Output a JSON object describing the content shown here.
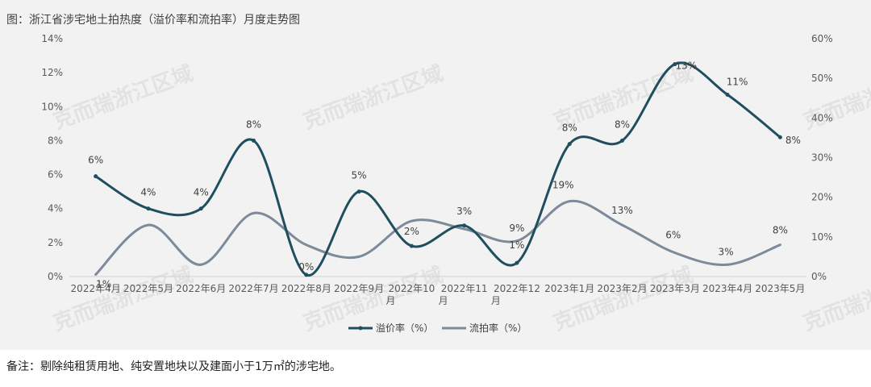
{
  "page": {
    "title": "图：浙江省涉宅地土拍热度（溢价率和流拍率）月度走势图",
    "note": "备注：剔除纯租赁用地、纯安置地块以及建面小于1万㎡的涉宅地。",
    "watermark": "克而瑞浙江区域"
  },
  "chart_data": {
    "type": "line",
    "title": "",
    "categories": [
      "2022年4月",
      "2022年5月",
      "2022年6月",
      "2022年7月",
      "2022年8月",
      "2022年9月",
      "2022年10月",
      "2022年11月",
      "2022年12月",
      "2023年1月",
      "2023年2月",
      "2023年3月",
      "2023年4月",
      "2023年5月"
    ],
    "category_lines": [
      [
        "2022年4月"
      ],
      [
        "2022年5月"
      ],
      [
        "2022年6月"
      ],
      [
        "2022年7月"
      ],
      [
        "2022年8月"
      ],
      [
        "2022年9月"
      ],
      [
        "2022年10",
        "月"
      ],
      [
        "2022年11",
        "月"
      ],
      [
        "2022年12",
        "月"
      ],
      [
        "2023年1月"
      ],
      [
        "2023年2月"
      ],
      [
        "2023年3月"
      ],
      [
        "2023年4月"
      ],
      [
        "2023年5月"
      ]
    ],
    "y_left": {
      "min": 0,
      "max": 14,
      "step": 2,
      "ticks": [
        "0%",
        "2%",
        "4%",
        "6%",
        "8%",
        "10%",
        "12%",
        "14%"
      ]
    },
    "y_right": {
      "min": 0,
      "max": 60,
      "step": 10,
      "ticks": [
        "0%",
        "10%",
        "20%",
        "30%",
        "40%",
        "50%",
        "60%"
      ]
    },
    "series": [
      {
        "name": "溢价率（%）",
        "axis": "left",
        "color": "#1f4e5f",
        "values": [
          5.9,
          4.0,
          4.0,
          8.0,
          0.1,
          5.0,
          1.8,
          3.0,
          0.8,
          7.8,
          8.0,
          12.5,
          10.7,
          8.2
        ],
        "labels": [
          "6%",
          "4%",
          "4%",
          "8%",
          "0%",
          "5%",
          "2%",
          "3%",
          "1%",
          "8%",
          "8%",
          "13%",
          "11%",
          "8%"
        ]
      },
      {
        "name": "流拍率（%）",
        "axis": "right",
        "color": "#7d8a99",
        "values": [
          0.5,
          13,
          3,
          16,
          8,
          5,
          14,
          12,
          9,
          19,
          13,
          6,
          3,
          8
        ],
        "labels": [
          "1%",
          "13%",
          "3%",
          "16%",
          "8%",
          "5%",
          "14%",
          "12%",
          "9%",
          "19%",
          "13%",
          "6%",
          "3%",
          "8%"
        ],
        "shown_labels": [
          true,
          false,
          false,
          false,
          false,
          false,
          false,
          false,
          true,
          true,
          true,
          true,
          true,
          true
        ]
      }
    ],
    "legend_position": "bottom",
    "grid": false
  }
}
